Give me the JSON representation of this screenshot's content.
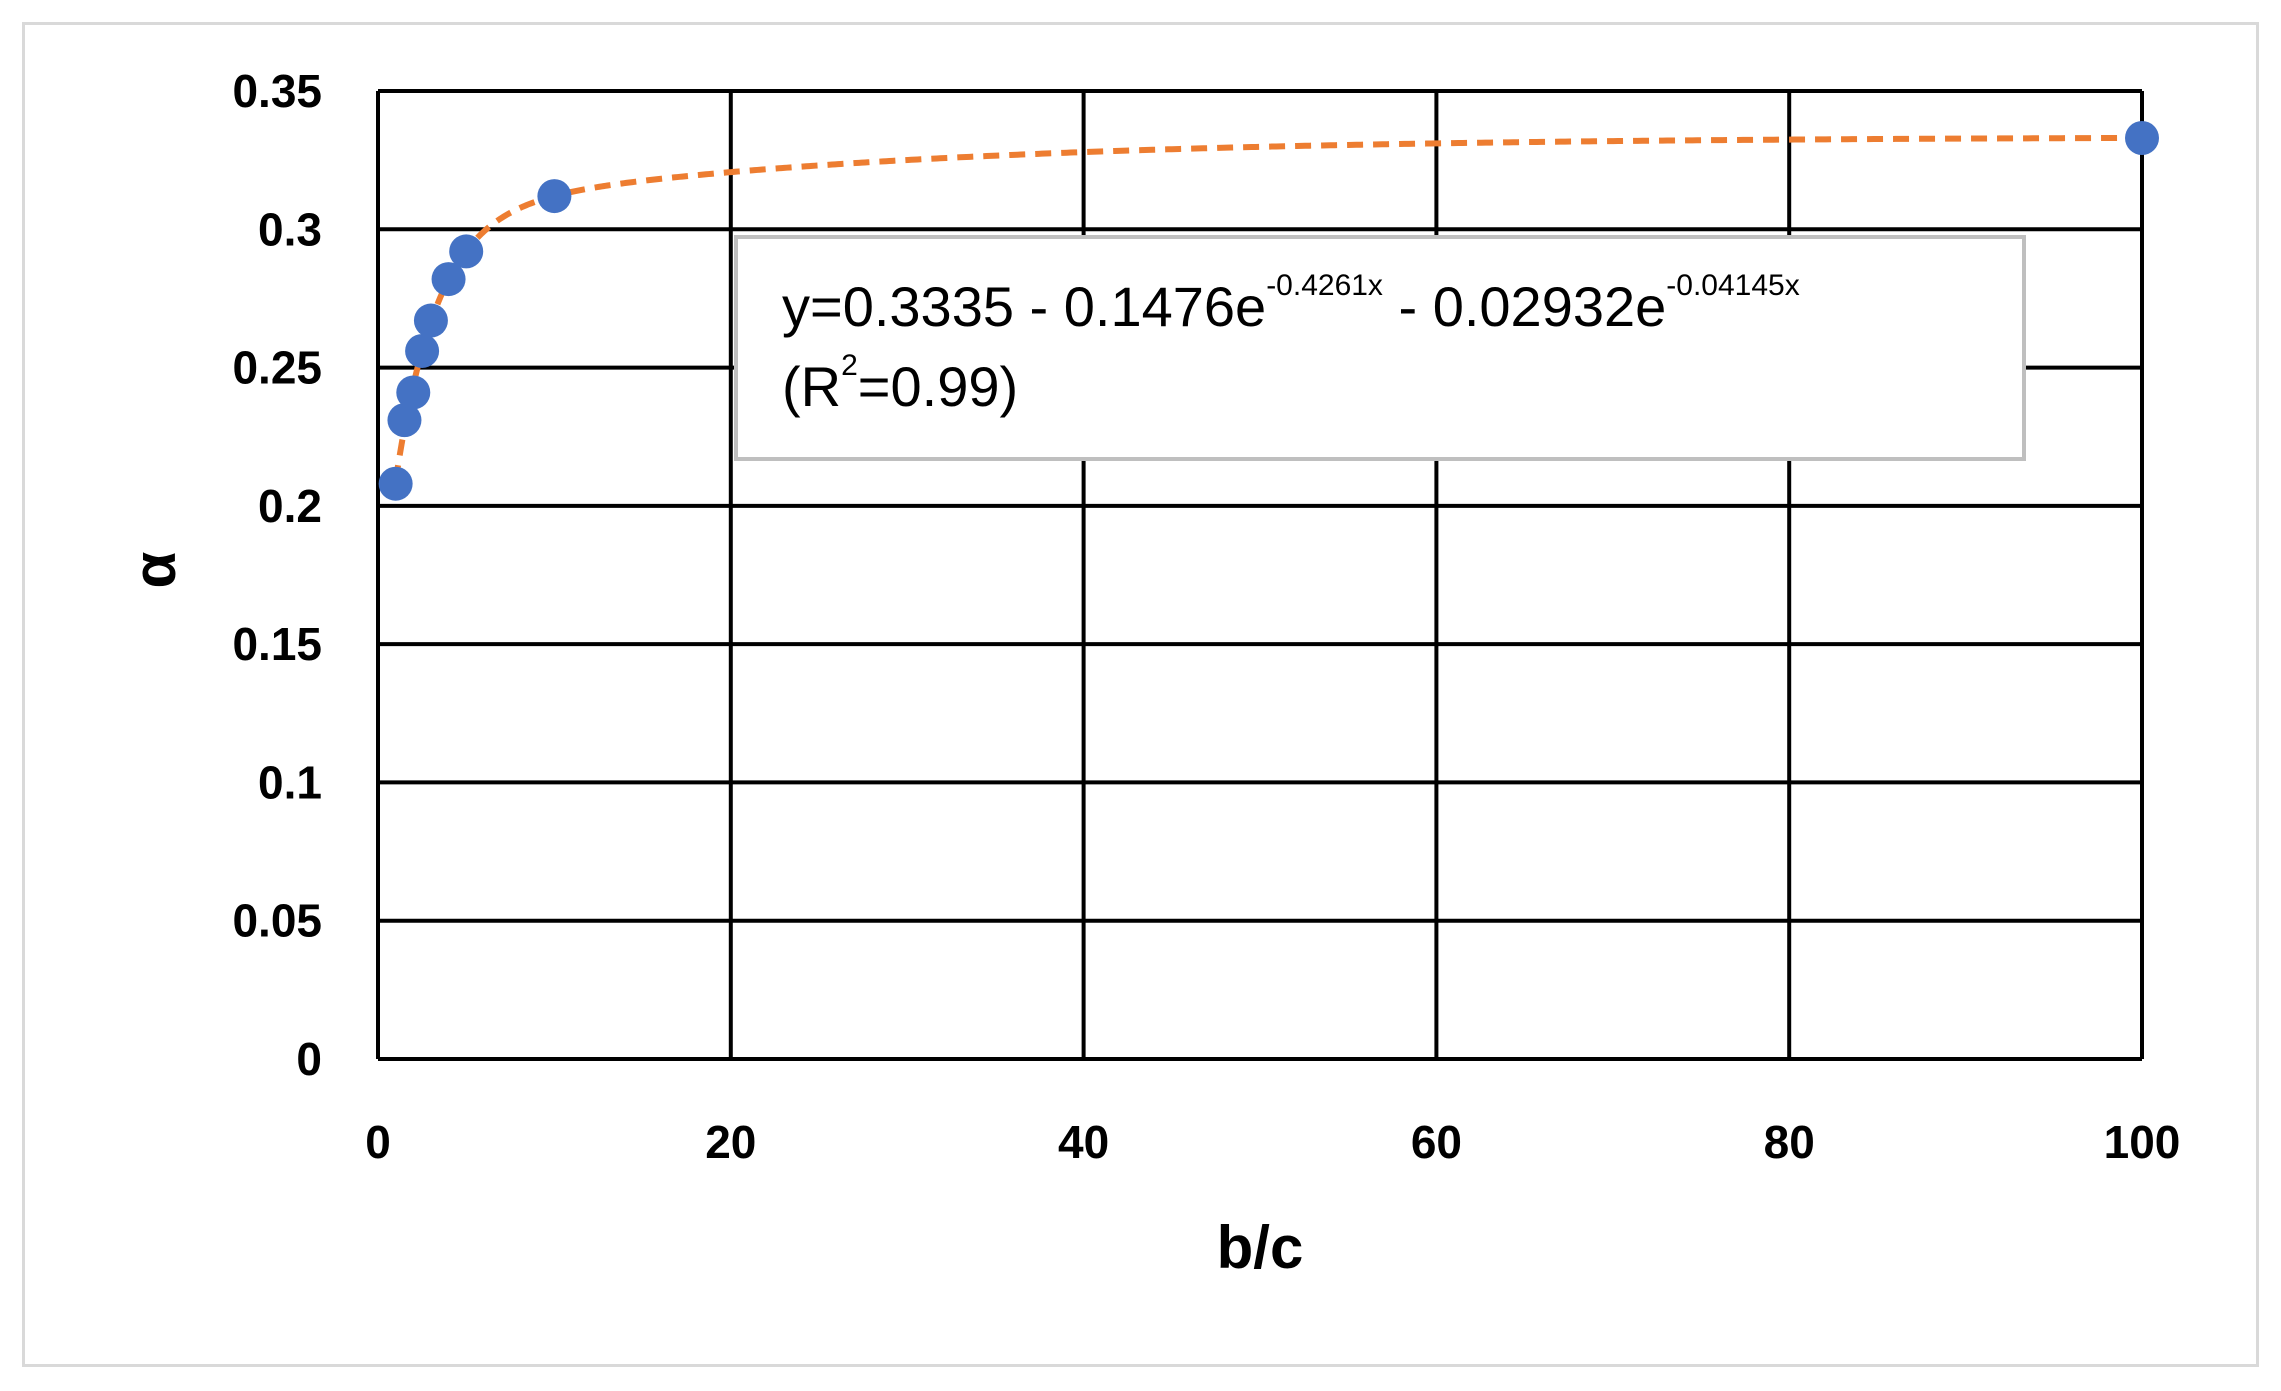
{
  "chart_data": {
    "type": "scatter",
    "xlabel": "b/c",
    "ylabel": "α",
    "xlim": [
      0,
      100
    ],
    "ylim": [
      0,
      0.35
    ],
    "x_ticks": [
      "0",
      "20",
      "40",
      "60",
      "80",
      "100"
    ],
    "y_ticks": [
      "0",
      "0.05",
      "0.1",
      "0.15",
      "0.2",
      "0.25",
      "0.3",
      "0.35"
    ],
    "grid": true,
    "series": [
      {
        "marker_color": "#4472c4",
        "points": [
          {
            "x": 1,
            "y": 0.208
          },
          {
            "x": 1.5,
            "y": 0.231
          },
          {
            "x": 2,
            "y": 0.241
          },
          {
            "x": 2.5,
            "y": 0.256
          },
          {
            "x": 3,
            "y": 0.267
          },
          {
            "x": 4,
            "y": 0.282
          },
          {
            "x": 5,
            "y": 0.292
          },
          {
            "x": 10,
            "y": 0.312
          },
          {
            "x": 100,
            "y": 0.333
          }
        ]
      }
    ],
    "trendline": {
      "style": "dashed",
      "color": "#ed7d31",
      "a": 0.3335,
      "b": 0.1476,
      "c": 0.4261,
      "d": 0.02932,
      "e": 0.04145
    },
    "annotation": {
      "eq_prefix": "y=0.3335 - 0.1476e",
      "eq_exp1": "-0.4261x",
      "eq_mid": " - 0.02932e",
      "eq_exp2": "-0.04145x",
      "r2_prefix": "(R",
      "r2_sup": "2",
      "r2_suffix": "=0.99)"
    }
  }
}
